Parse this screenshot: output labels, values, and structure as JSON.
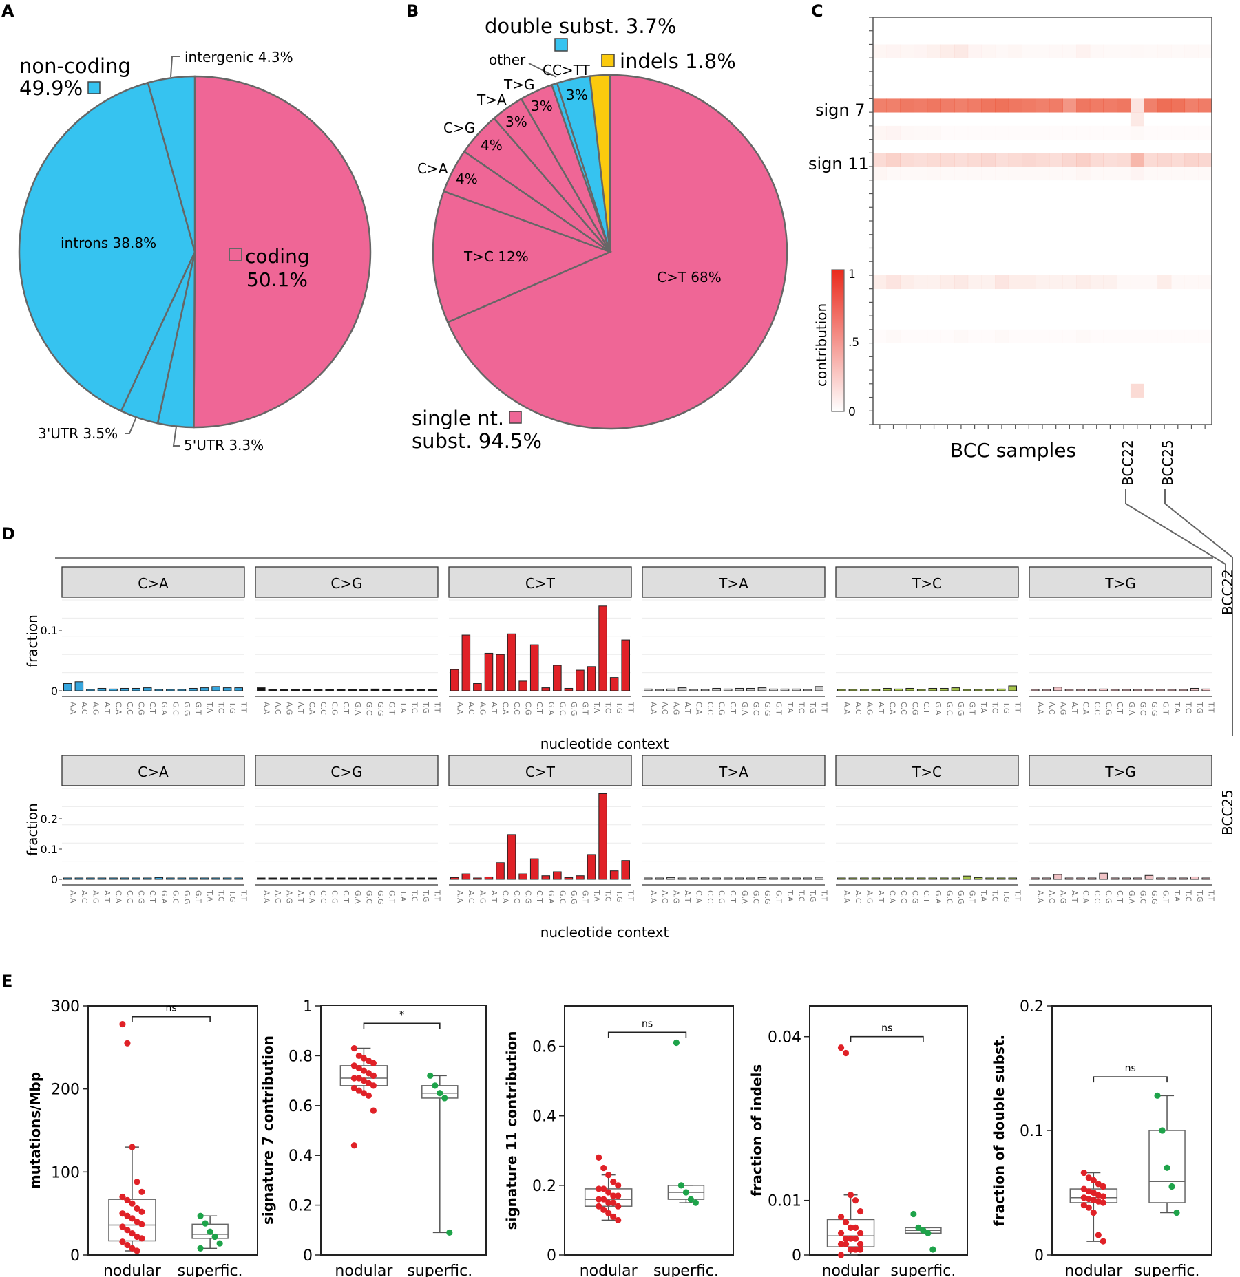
{
  "panel_labels": [
    "A",
    "B",
    "C",
    "D",
    "E"
  ],
  "colors": {
    "pink": "#ef6696",
    "blue": "#36c3f0",
    "yellow": "#fbca0e",
    "red": "#e02127",
    "green": "#1ea34a",
    "outline": "#666666",
    "heat": "#ea4a2c"
  },
  "chart_data": [
    {
      "id": "A",
      "type": "pie",
      "slices": [
        {
          "name": "coding",
          "value": 50.1,
          "group": "coding"
        },
        {
          "name": "5'UTR",
          "value": 3.3,
          "group": "non-coding"
        },
        {
          "name": "3'UTR",
          "value": 3.5,
          "group": "non-coding"
        },
        {
          "name": "introns",
          "value": 38.8,
          "group": "non-coding"
        },
        {
          "name": "intergenic",
          "value": 4.3,
          "group": "non-coding"
        }
      ],
      "labels": {
        "coding": "coding",
        "coding_pct": "50.1%",
        "noncoding": "non-coding",
        "noncoding_pct": "49.9%",
        "introns": "introns 38.8%",
        "intergenic": "intergenic 4.3%",
        "utr3": "3'UTR 3.5%",
        "utr5": "5'UTR 3.3%"
      }
    },
    {
      "id": "B",
      "type": "pie",
      "slices": [
        {
          "name": "C>T",
          "value": 68,
          "group": "single nt. subst."
        },
        {
          "name": "T>C",
          "value": 12,
          "group": "single nt. subst."
        },
        {
          "name": "C>A",
          "value": 4,
          "group": "single nt. subst."
        },
        {
          "name": "C>G",
          "value": 4,
          "group": "single nt. subst."
        },
        {
          "name": "T>A",
          "value": 3,
          "group": "single nt. subst."
        },
        {
          "name": "T>G",
          "value": 3,
          "group": "single nt. subst."
        },
        {
          "name": "other",
          "value": 0.5,
          "group": "double subst."
        },
        {
          "name": "CC>TT",
          "value": 3,
          "group": "double subst."
        },
        {
          "name": "indels",
          "value": 1.8,
          "group": "indels"
        }
      ],
      "labels": {
        "ct": "C>T 68%",
        "tc": "T>C 12%",
        "ca": "C>A",
        "ca_pct": "4%",
        "cg": "C>G",
        "cg_pct": "4%",
        "ta": "T>A",
        "ta_pct": "3%",
        "tg": "T>G",
        "tg_pct": "3%",
        "other": "other",
        "cctt": "CC>TT",
        "cctt_pct": "3%",
        "double": "double subst. 3.7%",
        "indels": "indels 1.8%",
        "single1": "single nt.",
        "single2": "subst. 94.5%"
      }
    },
    {
      "id": "C",
      "type": "heatmap",
      "y_labels": [
        "sign 7",
        "sign 11"
      ],
      "xlabel": "BCC samples",
      "highlight_samples": [
        "BCC22",
        "BCC25"
      ],
      "colorbar": {
        "label": "contribution",
        "ticks": [
          "1",
          ".5",
          "0"
        ],
        "range": [
          0,
          1
        ]
      },
      "n_samples": 25,
      "n_signatures": 30,
      "rows": [
        {
          "row": 2,
          "values": [
            0.05,
            0.06,
            0.05,
            0.06,
            0.08,
            0.1,
            0.12,
            0.06,
            0.05,
            0.04,
            0.05,
            0.03,
            0.03,
            0.04,
            0.04,
            0.07,
            0.04,
            0.03,
            0.03,
            0.04,
            0.03,
            0.04,
            0.03,
            0.04,
            0.03
          ]
        },
        {
          "row": 6,
          "values": [
            0.7,
            0.7,
            0.74,
            0.72,
            0.75,
            0.72,
            0.7,
            0.72,
            0.76,
            0.78,
            0.75,
            0.73,
            0.7,
            0.72,
            0.58,
            0.75,
            0.73,
            0.72,
            0.75,
            0.15,
            0.7,
            0.8,
            0.78,
            0.7,
            0.72
          ]
        },
        {
          "row": 7,
          "values": [
            0,
            0,
            0,
            0,
            0,
            0,
            0,
            0,
            0,
            0,
            0,
            0,
            0,
            0,
            0,
            0,
            0,
            0,
            0,
            0.12,
            0,
            0,
            0,
            0,
            0
          ]
        },
        {
          "row": 8,
          "values": [
            0.05,
            0.06,
            0.04,
            0.03,
            0.03,
            0.02,
            0.02,
            0.02,
            0.02,
            0.02,
            0.02,
            0.02,
            0.02,
            0.02,
            0.02,
            0.02,
            0.02,
            0.02,
            0.02,
            0.03,
            0.02,
            0.02,
            0.02,
            0.02,
            0.02
          ]
        },
        {
          "row": 10,
          "values": [
            0.2,
            0.25,
            0.2,
            0.18,
            0.2,
            0.2,
            0.18,
            0.2,
            0.22,
            0.18,
            0.2,
            0.22,
            0.2,
            0.18,
            0.22,
            0.26,
            0.2,
            0.18,
            0.2,
            0.4,
            0.2,
            0.22,
            0.2,
            0.24,
            0.22
          ]
        },
        {
          "row": 11,
          "values": [
            0.05,
            0.03,
            0.03,
            0.03,
            0.04,
            0.03,
            0.03,
            0.03,
            0.03,
            0.03,
            0.03,
            0.03,
            0.03,
            0.03,
            0.03,
            0.05,
            0.03,
            0.03,
            0.03,
            0.06,
            0.03,
            0.03,
            0.03,
            0.03,
            0.03
          ]
        },
        {
          "row": 19,
          "values": [
            0.1,
            0.15,
            0.1,
            0.08,
            0.08,
            0.1,
            0.12,
            0.08,
            0.08,
            0.14,
            0.1,
            0.1,
            0.08,
            0.08,
            0.08,
            0.1,
            0.08,
            0.08,
            0.04,
            0.04,
            0.04,
            0.1,
            0.04,
            0.04,
            0.04
          ]
        },
        {
          "row": 23,
          "values": [
            0.02,
            0.03,
            0.02,
            0.02,
            0.02,
            0.02,
            0.03,
            0.02,
            0.02,
            0.03,
            0.02,
            0.02,
            0.02,
            0.02,
            0.02,
            0.03,
            0.02,
            0.02,
            0.02,
            0.02,
            0.02,
            0.02,
            0.02,
            0.02,
            0.02
          ]
        },
        {
          "row": 27,
          "values": [
            0,
            0,
            0,
            0,
            0,
            0,
            0,
            0,
            0,
            0,
            0,
            0,
            0,
            0,
            0,
            0,
            0,
            0,
            0,
            0.2,
            0,
            0,
            0,
            0,
            0
          ]
        }
      ]
    },
    {
      "id": "D",
      "type": "bar",
      "xlabel": "nucleotide context",
      "ylabel": "fraction",
      "contexts": [
        "A.A",
        "A.C",
        "A.G",
        "A.T",
        "C.A",
        "C.C",
        "C.G",
        "C.T",
        "G.A",
        "G.C",
        "G.G",
        "G.T",
        "T.A",
        "T.C",
        "T.G",
        "T.T"
      ],
      "facets": [
        "C>A",
        "C>G",
        "C>T",
        "T>A",
        "T>C",
        "T>G"
      ],
      "facet_colors": [
        "#36a6de",
        "#111111",
        "#e02127",
        "#c9c9c9",
        "#a6c44a",
        "#f1c3c6"
      ],
      "samples": [
        {
          "name": "BCC22",
          "ylim": [
            0,
            0.15
          ],
          "yticks": [
            0,
            0.1
          ],
          "ytick_labels": [
            "0",
            "0.1"
          ],
          "values": [
            [
              0.012,
              0.015,
              0.002,
              0.004,
              0.003,
              0.004,
              0.004,
              0.005,
              0.002,
              0.002,
              0.002,
              0.004,
              0.005,
              0.007,
              0.005,
              0.005
            ],
            [
              0.005,
              0.001,
              0.001,
              0.001,
              0.001,
              0.001,
              0.002,
              0.001,
              0.001,
              0.001,
              0.003,
              0.001,
              0.001,
              0.001,
              0.001,
              0.001
            ],
            [
              0.035,
              0.092,
              0.012,
              0.062,
              0.06,
              0.094,
              0.016,
              0.076,
              0.005,
              0.042,
              0.004,
              0.034,
              0.04,
              0.14,
              0.022,
              0.084
            ],
            [
              0.003,
              0.002,
              0.003,
              0.005,
              0.002,
              0.002,
              0.004,
              0.003,
              0.004,
              0.004,
              0.005,
              0.003,
              0.003,
              0.003,
              0.001,
              0.007
            ],
            [
              0.001,
              0.001,
              0.001,
              0.001,
              0.004,
              0.003,
              0.004,
              0.002,
              0.004,
              0.004,
              0.005,
              0.001,
              0.001,
              0.001,
              0.003,
              0.008
            ],
            [
              0.002,
              0.002,
              0.006,
              0.001,
              0.001,
              0.001,
              0.003,
              0.001,
              0.001,
              0.001,
              0.001,
              0.002,
              0.001,
              0.001,
              0.004,
              0.003
            ]
          ]
        },
        {
          "name": "BCC25",
          "ylim": [
            0,
            0.3
          ],
          "yticks": [
            0,
            0.1,
            0.2
          ],
          "ytick_labels": [
            "0",
            "0.1",
            "0.2"
          ],
          "values": [
            [
              0.002,
              0.002,
              0.001,
              0.002,
              0.001,
              0.004,
              0.001,
              0.004,
              0.006,
              0.001,
              0.001,
              0.004,
              0.004,
              0.003,
              0.004,
              0.003
            ],
            [
              0.001,
              0.001,
              0.001,
              0.001,
              0.002,
              0.002,
              0.002,
              0.001,
              0.001,
              0.002,
              0.001,
              0.001,
              0.001,
              0.001,
              0.001,
              0.001
            ],
            [
              0.006,
              0.018,
              0.004,
              0.008,
              0.055,
              0.148,
              0.018,
              0.068,
              0.012,
              0.025,
              0.006,
              0.012,
              0.082,
              0.283,
              0.028,
              0.062
            ],
            [
              0.002,
              0.001,
              0.006,
              0.004,
              0.002,
              0.002,
              0.003,
              0.004,
              0.002,
              0.002,
              0.006,
              0.002,
              0.002,
              0.003,
              0.002,
              0.007
            ],
            [
              0.002,
              0.001,
              0.001,
              0.001,
              0.001,
              0.002,
              0.003,
              0.001,
              0.001,
              0.001,
              0.001,
              0.011,
              0.006,
              0.004,
              0.003,
              0.001
            ],
            [
              0.002,
              0.001,
              0.016,
              0.004,
              0.001,
              0.002,
              0.02,
              0.002,
              0.002,
              0.002,
              0.013,
              0.004,
              0.004,
              0.003,
              0.008,
              0.003
            ]
          ]
        }
      ]
    },
    {
      "id": "E",
      "type": "scatter",
      "groups": [
        "nodular",
        "superfic."
      ],
      "plots": [
        {
          "ylabel": "mutations/Mbp",
          "ylim": [
            0,
            300
          ],
          "yticks": [
            0,
            100,
            200,
            300
          ],
          "ytick_labels": [
            "0",
            "100",
            "200",
            "300"
          ],
          "sig": "ns",
          "nodular": [
            278,
            255,
            130,
            88,
            76,
            70,
            66,
            62,
            56,
            52,
            50,
            47,
            44,
            40,
            37,
            34,
            30,
            26,
            22,
            20,
            16,
            12,
            8,
            5
          ],
          "superfic": [
            47,
            38,
            28,
            22,
            14,
            8
          ],
          "box_nodular": {
            "whisker_low": 5,
            "q1": 17,
            "median": 36,
            "q3": 67,
            "whisker_high": 130
          },
          "box_superfic": {
            "whisker_low": 8,
            "q1": 20,
            "median": 25,
            "q3": 37,
            "whisker_high": 47
          }
        },
        {
          "ylabel": "signature 7 contribution",
          "ylim": [
            0,
            1
          ],
          "yticks": [
            0,
            0.2,
            0.4,
            0.6,
            0.8,
            1
          ],
          "ytick_labels": [
            "0",
            "0.2",
            "0.4",
            "0.6",
            "0.8",
            "1"
          ],
          "sig": "*",
          "nodular": [
            0.83,
            0.8,
            0.79,
            0.78,
            0.77,
            0.76,
            0.75,
            0.74,
            0.73,
            0.72,
            0.71,
            0.71,
            0.7,
            0.69,
            0.68,
            0.67,
            0.66,
            0.65,
            0.64,
            0.58,
            0.44
          ],
          "superfic": [
            0.72,
            0.68,
            0.65,
            0.63,
            0.09
          ],
          "box_nodular": {
            "whisker_low": 0.65,
            "q1": 0.68,
            "median": 0.71,
            "q3": 0.76,
            "whisker_high": 0.83
          },
          "box_superfic": {
            "whisker_low": 0.09,
            "q1": 0.63,
            "median": 0.65,
            "q3": 0.68,
            "whisker_high": 0.72
          }
        },
        {
          "ylabel": "signature 11 contribution",
          "ylim": [
            0,
            0.7
          ],
          "yticks": [
            0,
            0.2,
            0.4,
            0.6
          ],
          "ytick_labels": [
            "0",
            "0.2",
            "0.4",
            "0.6"
          ],
          "sig": "ns",
          "nodular": [
            0.28,
            0.25,
            0.23,
            0.21,
            0.2,
            0.19,
            0.19,
            0.18,
            0.17,
            0.17,
            0.16,
            0.16,
            0.15,
            0.15,
            0.14,
            0.14,
            0.13,
            0.12,
            0.11,
            0.1
          ],
          "superfic": [
            0.61,
            0.2,
            0.18,
            0.16,
            0.15
          ],
          "box_nodular": {
            "whisker_low": 0.1,
            "q1": 0.14,
            "median": 0.16,
            "q3": 0.19,
            "whisker_high": 0.23
          },
          "box_superfic": {
            "whisker_low": 0.15,
            "q1": 0.16,
            "median": 0.18,
            "q3": 0.2,
            "whisker_high": 0.2
          }
        },
        {
          "ylabel": "fraction of indels",
          "ylim": [
            0,
            0.044
          ],
          "yticks": [
            0,
            0.01,
            0.04
          ],
          "ytick_labels": [
            "0",
            "0.01",
            "0.04"
          ],
          "sig": "ns",
          "nodular": [
            0.038,
            0.037,
            0.011,
            0.01,
            0.008,
            0.007,
            0.006,
            0.005,
            0.005,
            0.004,
            0.004,
            0.003,
            0.003,
            0.003,
            0.002,
            0.002,
            0.002,
            0.001,
            0.001,
            0.001,
            0.0
          ],
          "superfic": [
            0.0075,
            0.005,
            0.0045,
            0.004,
            0.001
          ],
          "box_nodular": {
            "whisker_low": 0.0,
            "q1": 0.0015,
            "median": 0.0035,
            "q3": 0.0065,
            "whisker_high": 0.011
          },
          "box_superfic": {
            "whisker_low": 0.004,
            "q1": 0.004,
            "median": 0.0045,
            "q3": 0.005,
            "whisker_high": 0.005
          }
        },
        {
          "ylabel": "fraction of double subst.",
          "ylim": [
            0,
            0.2
          ],
          "yticks": [
            0,
            0.1,
            0.2
          ],
          "ytick_labels": [
            "0",
            "0.1",
            "0.2"
          ],
          "sig": "ns",
          "nodular": [
            0.066,
            0.062,
            0.06,
            0.057,
            0.055,
            0.053,
            0.051,
            0.05,
            0.048,
            0.047,
            0.046,
            0.045,
            0.044,
            0.043,
            0.042,
            0.04,
            0.038,
            0.034,
            0.016,
            0.011
          ],
          "superfic": [
            0.128,
            0.1,
            0.07,
            0.055,
            0.034
          ],
          "box_nodular": {
            "whisker_low": 0.011,
            "q1": 0.042,
            "median": 0.046,
            "q3": 0.053,
            "whisker_high": 0.066
          },
          "box_superfic": {
            "whisker_low": 0.034,
            "q1": 0.042,
            "median": 0.059,
            "q3": 0.1,
            "whisker_high": 0.128
          }
        }
      ]
    }
  ]
}
